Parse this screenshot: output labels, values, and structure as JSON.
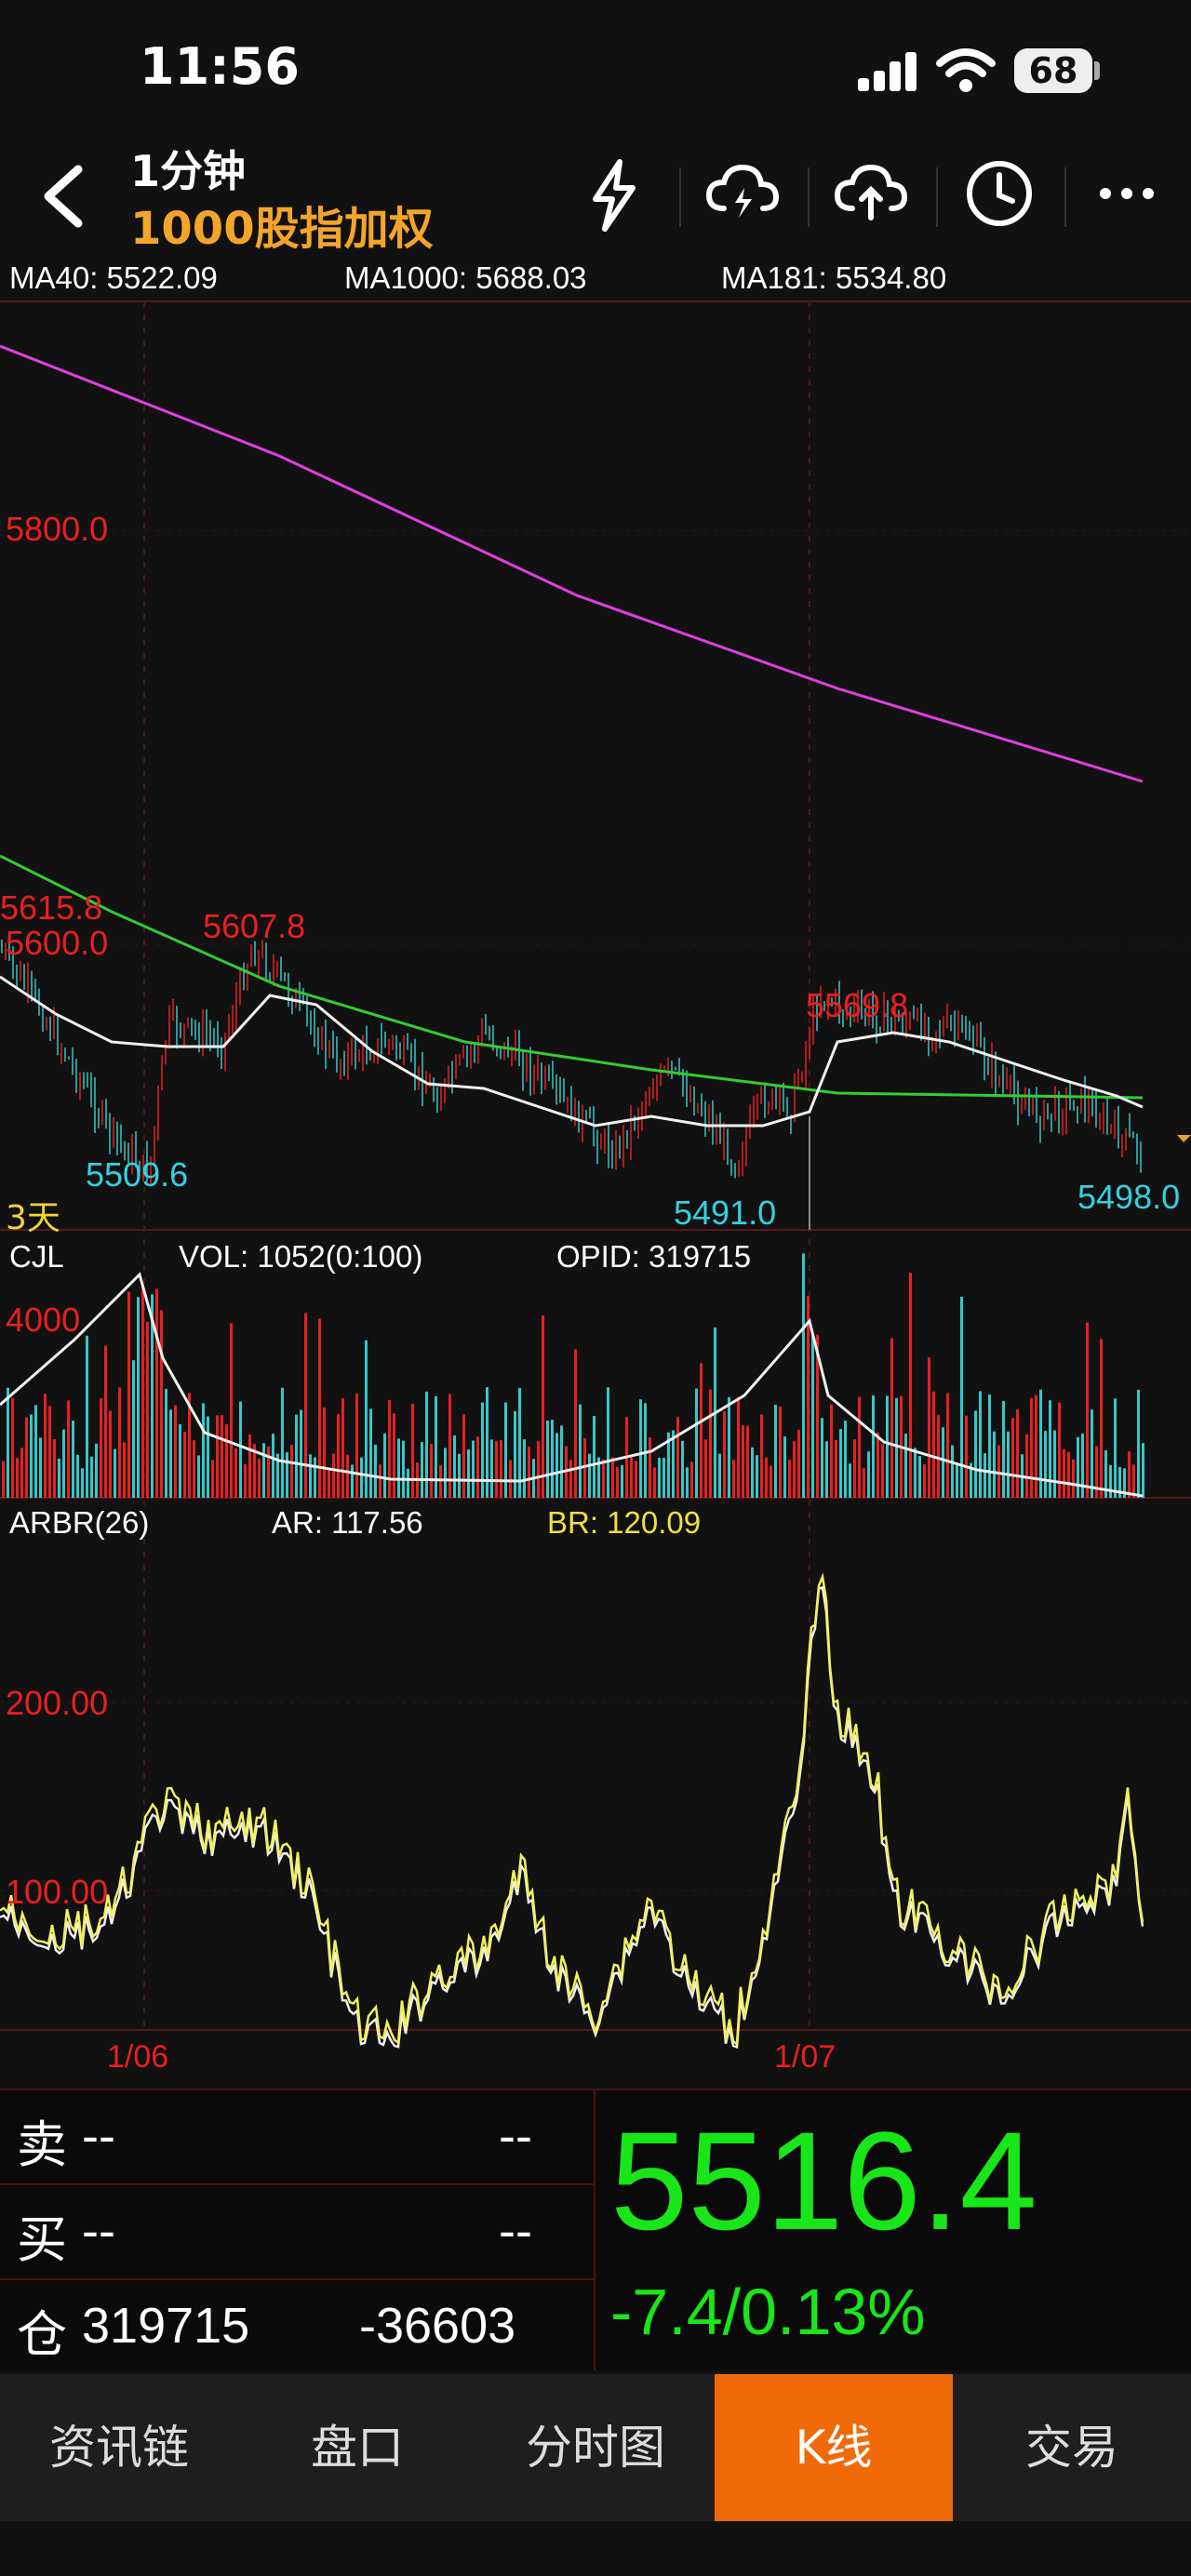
{
  "status_bar": {
    "time": "11:56",
    "battery": "68"
  },
  "header": {
    "title": "1分钟",
    "subtitle": "1000股指加权"
  },
  "ma_legend": [
    {
      "label": "MA40: 5522.09",
      "color": "#ffffff"
    },
    {
      "label": "MA1000: 5688.03",
      "color": "#e040e0"
    },
    {
      "label": "MA181: 5534.80",
      "color": "#33cc33"
    }
  ],
  "price_chart": {
    "y_labels": [
      "5800.0",
      "5600.0"
    ],
    "annotations": {
      "left_edge": "5615.8",
      "peak_1": "5607.8",
      "peak_2": "5569.8",
      "low_1": "5509.6",
      "low_2": "5491.0",
      "low_3": "5498.0"
    },
    "period_label": "3天"
  },
  "volume_panel": {
    "title": "CJL",
    "vol": "VOL: 1052(0:100)",
    "opid": "OPID: 319715",
    "y_label": "4000"
  },
  "arbr_panel": {
    "title": "ARBR(26)",
    "ar": "AR: 117.56",
    "br": "BR: 120.09",
    "y_labels": [
      "200.00",
      "100.00"
    ]
  },
  "x_axis": [
    "1/06",
    "1/07"
  ],
  "quote": {
    "sell_label": "卖",
    "sell_value": "--",
    "sell_qty": "--",
    "buy_label": "买",
    "buy_value": "--",
    "buy_qty": "--",
    "position_label": "仓",
    "position_value": "319715",
    "position_change": "-36603",
    "price": "5516.4",
    "change": "-7.4/0.13%"
  },
  "tabs": [
    {
      "label": "资讯链",
      "active": false
    },
    {
      "label": "盘口",
      "active": false
    },
    {
      "label": "分时图",
      "active": false
    },
    {
      "label": "K线",
      "active": true
    },
    {
      "label": "交易",
      "active": false
    }
  ],
  "colors": {
    "up": "#e82020",
    "down": "#35c8c8",
    "accent": "#f06a0a",
    "gain": "#19e619"
  }
}
